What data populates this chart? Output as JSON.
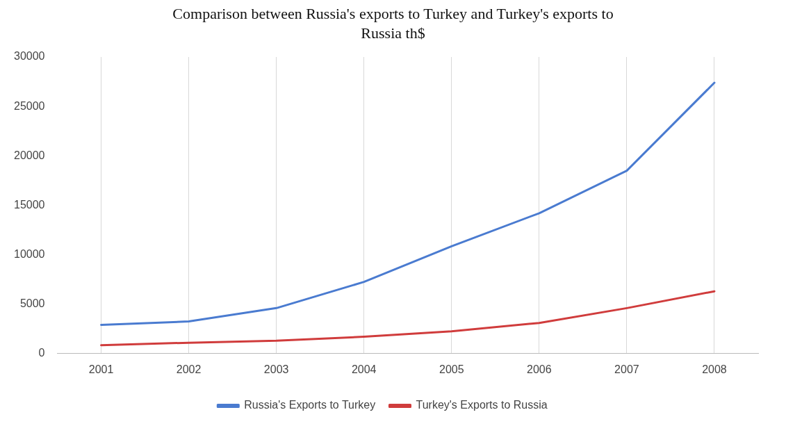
{
  "chart_data": {
    "type": "line",
    "title": "Comparison between Russia's exports to Turkey and Turkey's exports to Russia th$",
    "categories": [
      "2001",
      "2002",
      "2003",
      "2004",
      "2005",
      "2006",
      "2007",
      "2008"
    ],
    "series": [
      {
        "name": "Russia's Exports to Turkey",
        "color": "#4a7bd0",
        "values": [
          2900,
          3250,
          4600,
          7250,
          10850,
          14200,
          18500,
          27400
        ]
      },
      {
        "name": "Turkey's Exports to Russia",
        "color": "#d03c3c",
        "values": [
          850,
          1100,
          1300,
          1700,
          2250,
          3100,
          4600,
          6300
        ]
      }
    ],
    "ylim": [
      0,
      30000
    ],
    "yticks": [
      0,
      5000,
      10000,
      15000,
      20000,
      25000,
      30000
    ],
    "grid": "x",
    "legend": "bottom",
    "marker": "none",
    "line_style": "solid"
  }
}
